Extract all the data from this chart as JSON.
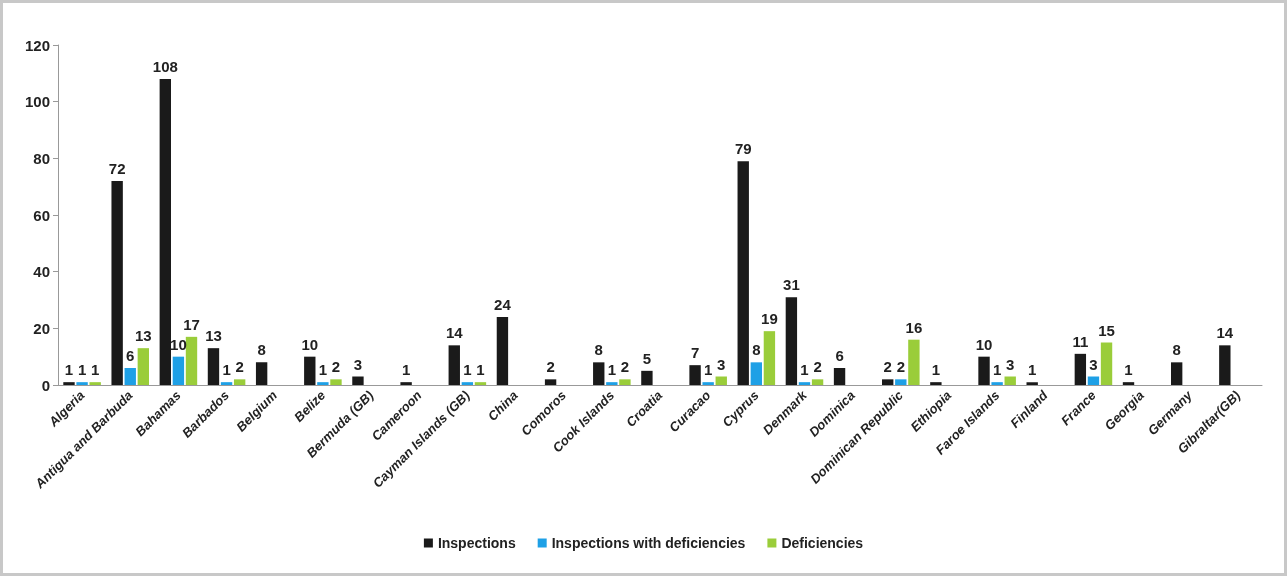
{
  "chart_data": {
    "type": "bar",
    "categories": [
      "Algeria",
      "Antigua and Barbuda",
      "Bahamas",
      "Barbados",
      "Belgium",
      "Belize",
      "Bermuda (GB)",
      "Cameroon",
      "Cayman Islands (GB)",
      "China",
      "Comoros",
      "Cook Islands",
      "Croatia",
      "Curacao",
      "Cyprus",
      "Denmark",
      "Dominica",
      "Dominican Republic",
      "Ethiopia",
      "Faroe Islands",
      "Finland",
      "France",
      "Georgia",
      "Germany",
      "Gibraltar(GB)"
    ],
    "series": [
      {
        "name": "Inspections",
        "color": "#1a1a1a",
        "values": [
          1,
          72,
          108,
          13,
          8,
          10,
          3,
          1,
          14,
          24,
          2,
          8,
          5,
          7,
          79,
          31,
          6,
          2,
          1,
          10,
          1,
          11,
          1,
          8,
          14
        ]
      },
      {
        "name": "Inspections with deficiencies",
        "color": "#1ea0e6",
        "values": [
          1,
          6,
          10,
          1,
          null,
          1,
          null,
          null,
          1,
          null,
          null,
          1,
          null,
          1,
          8,
          1,
          null,
          2,
          null,
          1,
          null,
          3,
          null,
          null,
          null
        ]
      },
      {
        "name": "Deficiencies",
        "color": "#9acd3a",
        "values": [
          1,
          13,
          17,
          2,
          null,
          2,
          null,
          null,
          1,
          null,
          null,
          2,
          null,
          3,
          19,
          2,
          null,
          16,
          null,
          3,
          null,
          15,
          null,
          null,
          null
        ]
      }
    ],
    "ylim": [
      0,
      120
    ],
    "yticks": [
      0,
      20,
      40,
      60,
      80,
      100,
      120
    ],
    "grid": false,
    "legend": "bottom",
    "data_labels": true
  }
}
